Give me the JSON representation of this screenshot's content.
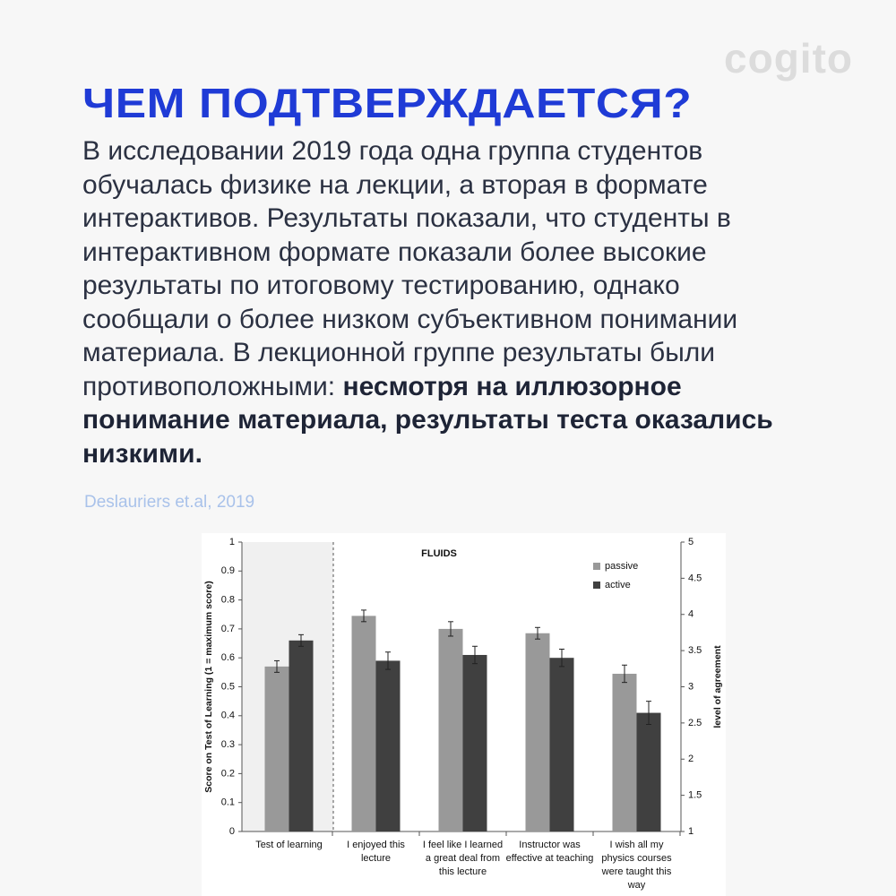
{
  "header": {
    "logo": "cogito",
    "title": "ЧЕМ ПОДТВЕРЖДАЕТСЯ?",
    "text": "В исследовании 2019 года одна группа студентов обучалась физике на лекции, а вторая в формате интерактивов. Результаты показали, что студенты в интерактивном формате показали более высокие результаты по итоговому тестированию, однако сообщали о более низком субъективном понимании материала. В лекционной группе результаты были противоположными:",
    "text_bold": "несмотря на иллюзорное понимание материала, результаты теста оказались низкими.",
    "citation": "Deslauriers et.al, 2019"
  },
  "chart_data": {
    "type": "bar",
    "title": "FLUIDS",
    "ylabel": "Score on Test of Learning   (1 = maximum score)",
    "y2label": "level of agreement",
    "categories": [
      "Test of learning",
      "I enjoyed this lecture",
      "I feel like I learned a great deal from this lecture",
      "Instructor was effective at teaching",
      "I wish all my physics courses were taught this way"
    ],
    "value_axes": [
      "y",
      "y2",
      "y2",
      "y2",
      "y2"
    ],
    "series": [
      {
        "name": "passive",
        "color": "#999999",
        "values": [
          0.57,
          3.98,
          3.8,
          3.74,
          3.18
        ],
        "errors": [
          0.02,
          0.08,
          0.1,
          0.08,
          0.12
        ]
      },
      {
        "name": "active",
        "color": "#404040",
        "values": [
          0.66,
          3.36,
          3.44,
          3.4,
          2.64
        ],
        "errors": [
          0.02,
          0.12,
          0.12,
          0.12,
          0.16
        ]
      }
    ],
    "ylim": [
      0,
      1
    ],
    "yticks": [
      0,
      0.1,
      0.2,
      0.3,
      0.4,
      0.5,
      0.6,
      0.7,
      0.8,
      0.9,
      1
    ],
    "y2lim": [
      1,
      5
    ],
    "y2ticks": [
      1,
      1.5,
      2,
      2.5,
      3,
      3.5,
      4,
      4.5,
      5
    ],
    "legend": "upper right",
    "grid": false
  }
}
